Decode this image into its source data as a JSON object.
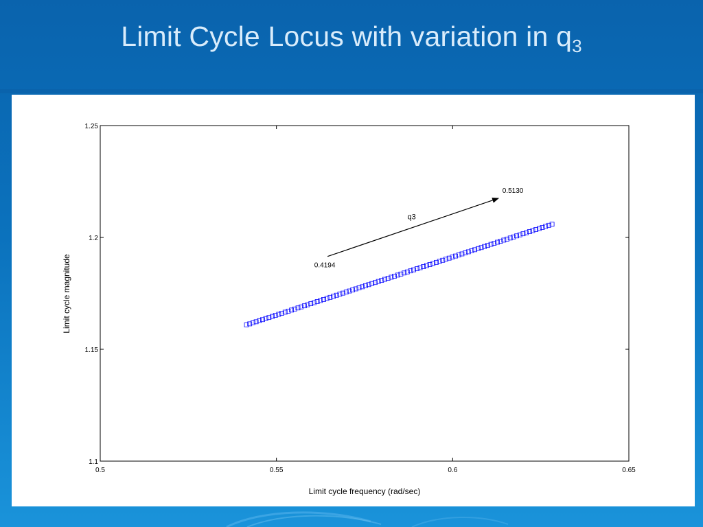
{
  "slide": {
    "title": "Limit Cycle Locus with variation in q",
    "title_subscript": "3"
  },
  "colors": {
    "background_top": "#0a63ad",
    "background_bottom": "#1a93da",
    "title_text": "#d9ecfb",
    "panel": "#ffffff",
    "series": "#0000ff",
    "axes": "#000000"
  },
  "chart_data": {
    "type": "scatter",
    "title": "",
    "xlabel": "Limit cycle frequency (rad/sec)",
    "ylabel": "Limit cycle magnitude",
    "xlim": [
      0.5,
      0.65
    ],
    "ylim": [
      1.1,
      1.25
    ],
    "xticks": [
      "0.5",
      "0.55",
      "0.6",
      "0.65"
    ],
    "yticks": [
      "1.1",
      "1.15",
      "1.2",
      "1.25"
    ],
    "grid": false,
    "marker": "square",
    "series": [
      {
        "x_start": 0.5415,
        "y_start": 1.1609,
        "x_end": 0.6282,
        "y_end": 1.2059,
        "n_points": 96
      }
    ],
    "annotations": {
      "arrow_label": "q3",
      "start_label": "0.4194",
      "end_label": "0.5130",
      "arrow_from": {
        "x": 0.5645,
        "y": 1.1915
      },
      "arrow_to": {
        "x": 0.613,
        "y": 1.2175
      }
    }
  }
}
